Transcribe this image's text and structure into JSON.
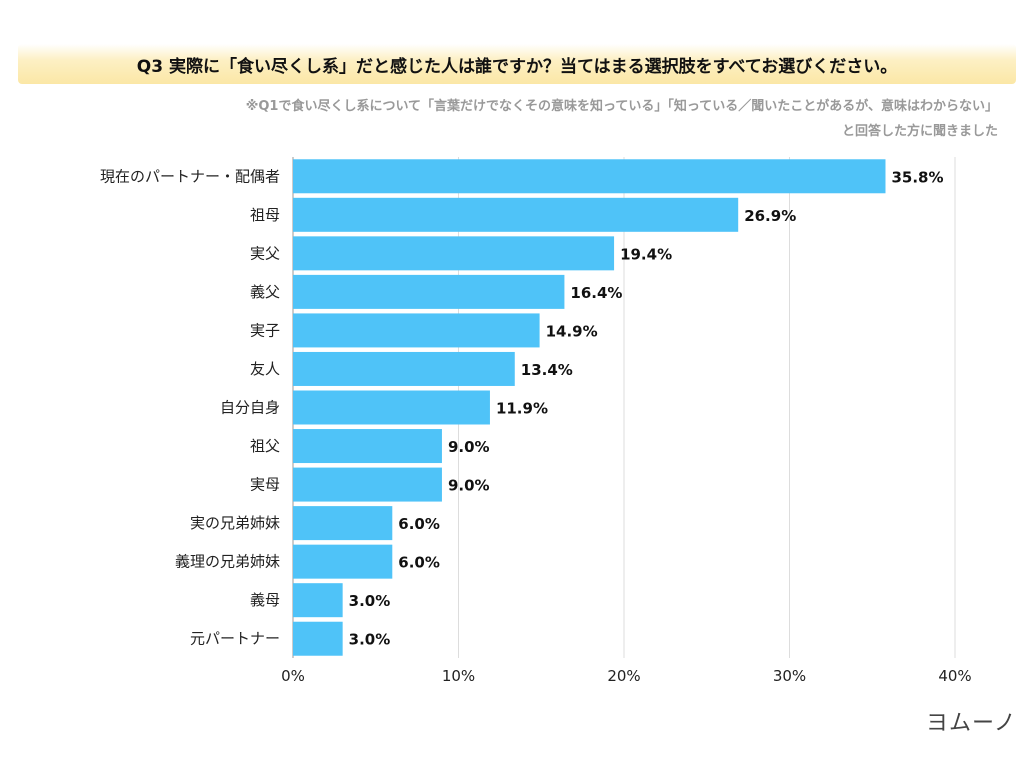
{
  "title": "Q3 実際に「食い尽くし系」だと感じた人は誰ですか？当てはまる選択肢をすべてお選びください。",
  "subtitle_line1": "※Q1で食い尽くし系について「言葉だけでなくその意味を知っている」「知っている／聞いたことがあるが、意味はわからない」",
  "subtitle_line2": "と回答した方に聞きました",
  "logo": "ヨムーノ",
  "chart_data": {
    "type": "bar",
    "orientation": "horizontal",
    "categories": [
      "現在のパートナー・配偶者",
      "祖母",
      "実父",
      "義父",
      "実子",
      "友人",
      "自分自身",
      "祖父",
      "実母",
      "実の兄弟姉妹",
      "義理の兄弟姉妹",
      "義母",
      "元パートナー"
    ],
    "values": [
      35.8,
      26.9,
      19.4,
      16.4,
      14.9,
      13.4,
      11.9,
      9.0,
      9.0,
      6.0,
      6.0,
      3.0,
      3.0
    ],
    "xlim": [
      0,
      40
    ],
    "xticks": [
      "0%",
      "10%",
      "20%",
      "30%",
      "40%"
    ],
    "grid": true,
    "bar_color": "#4fc3f8",
    "unit": "%"
  }
}
